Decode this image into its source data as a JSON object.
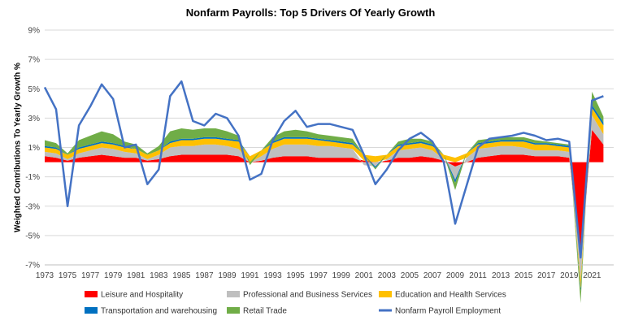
{
  "chart_data": {
    "type": "area",
    "title": "Nonfarm Payrolls: Top 5 Drivers Of Yearly Growth",
    "ylabel": "Weighted Contributions To Yearly Growth %",
    "xlabel": "",
    "x": [
      1973,
      1974,
      1975,
      1976,
      1977,
      1978,
      1979,
      1980,
      1981,
      1982,
      1983,
      1984,
      1985,
      1986,
      1987,
      1988,
      1989,
      1990,
      1991,
      1992,
      1993,
      1994,
      1995,
      1996,
      1997,
      1998,
      1999,
      2000,
      2001,
      2002,
      2003,
      2004,
      2005,
      2006,
      2007,
      2008,
      2009,
      2010,
      2011,
      2012,
      2013,
      2014,
      2015,
      2016,
      2017,
      2018,
      2019,
      2020,
      2021,
      2022
    ],
    "xlim": [
      1973,
      2022.9
    ],
    "ylim": [
      -7,
      9
    ],
    "x_ticks": [
      "1973",
      "1975",
      "1977",
      "1979",
      "1981",
      "1983",
      "1985",
      "1987",
      "1989",
      "1991",
      "1993",
      "1995",
      "1997",
      "1999",
      "2001",
      "2003",
      "2005",
      "2007",
      "2009",
      "2011",
      "2013",
      "2015",
      "2017",
      "2019",
      "2021"
    ],
    "y_ticks": [
      "9%",
      "7%",
      "5%",
      "3%",
      "1%",
      "-1%",
      "-3%",
      "-5%",
      "-7%"
    ],
    "series": [
      {
        "name": "Leisure and Hospitality",
        "kind": "area",
        "color": "#ff0000",
        "values": [
          0.4,
          0.3,
          0.1,
          0.3,
          0.4,
          0.5,
          0.4,
          0.3,
          0.3,
          0.1,
          0.2,
          0.4,
          0.5,
          0.5,
          0.5,
          0.5,
          0.5,
          0.4,
          0.0,
          0.1,
          0.3,
          0.4,
          0.4,
          0.4,
          0.3,
          0.3,
          0.3,
          0.3,
          0.1,
          0.0,
          0.1,
          0.3,
          0.3,
          0.4,
          0.3,
          0.1,
          -0.3,
          0.0,
          0.3,
          0.4,
          0.5,
          0.5,
          0.5,
          0.4,
          0.4,
          0.4,
          0.3,
          -6.5,
          2.2,
          1.2
        ]
      },
      {
        "name": "Professional and Business Services",
        "kind": "area",
        "color": "#bfbfbf",
        "values": [
          0.3,
          0.3,
          0.1,
          0.3,
          0.4,
          0.5,
          0.5,
          0.4,
          0.3,
          0.1,
          0.3,
          0.6,
          0.6,
          0.6,
          0.7,
          0.7,
          0.6,
          0.5,
          0.0,
          0.3,
          0.6,
          0.8,
          0.8,
          0.8,
          0.8,
          0.8,
          0.7,
          0.6,
          -0.2,
          -0.3,
          0.1,
          0.5,
          0.6,
          0.6,
          0.5,
          0.1,
          -0.9,
          0.3,
          0.6,
          0.6,
          0.6,
          0.6,
          0.5,
          0.4,
          0.4,
          0.4,
          0.4,
          -1.5,
          1.0,
          0.7
        ]
      },
      {
        "name": "Education and Health Services",
        "kind": "area",
        "color": "#ffc000",
        "values": [
          0.3,
          0.3,
          0.3,
          0.3,
          0.3,
          0.3,
          0.3,
          0.3,
          0.3,
          0.3,
          0.3,
          0.3,
          0.4,
          0.4,
          0.4,
          0.4,
          0.4,
          0.5,
          0.4,
          0.4,
          0.4,
          0.4,
          0.4,
          0.4,
          0.4,
          0.3,
          0.3,
          0.3,
          0.4,
          0.4,
          0.3,
          0.3,
          0.3,
          0.3,
          0.3,
          0.3,
          0.3,
          0.3,
          0.3,
          0.3,
          0.3,
          0.3,
          0.4,
          0.4,
          0.4,
          0.3,
          0.3,
          -0.6,
          0.5,
          0.6
        ]
      },
      {
        "name": "Transportation and warehousing",
        "kind": "area",
        "color": "#0070c0",
        "values": [
          0.1,
          0.1,
          0.0,
          0.1,
          0.1,
          0.1,
          0.1,
          0.1,
          0.0,
          0.0,
          0.0,
          0.1,
          0.1,
          0.1,
          0.1,
          0.1,
          0.1,
          0.1,
          0.0,
          0.0,
          0.1,
          0.1,
          0.1,
          0.1,
          0.1,
          0.1,
          0.1,
          0.1,
          0.0,
          -0.1,
          0.0,
          0.1,
          0.1,
          0.1,
          0.1,
          0.0,
          -0.2,
          0.0,
          0.1,
          0.1,
          0.1,
          0.1,
          0.1,
          0.1,
          0.1,
          0.1,
          0.1,
          -0.2,
          0.2,
          0.2
        ]
      },
      {
        "name": "Retail Trade",
        "kind": "area",
        "color": "#70ad47",
        "values": [
          0.4,
          0.3,
          0.1,
          0.5,
          0.6,
          0.7,
          0.6,
          0.3,
          0.3,
          0.1,
          0.3,
          0.7,
          0.7,
          0.6,
          0.6,
          0.6,
          0.5,
          0.3,
          -0.2,
          0.0,
          0.3,
          0.4,
          0.5,
          0.4,
          0.3,
          0.3,
          0.3,
          0.3,
          0.0,
          -0.1,
          0.0,
          0.2,
          0.3,
          0.2,
          0.2,
          0.0,
          -0.5,
          0.0,
          0.2,
          0.2,
          0.2,
          0.2,
          0.2,
          0.2,
          0.1,
          0.1,
          0.1,
          -0.8,
          0.9,
          0.4
        ]
      },
      {
        "name": "Nonfarm Payroll Employment",
        "kind": "line",
        "color": "#4472c4",
        "values": [
          5.1,
          3.6,
          -3.0,
          2.5,
          3.8,
          5.3,
          4.3,
          1.0,
          1.2,
          -1.5,
          -0.5,
          4.5,
          5.5,
          2.8,
          2.5,
          3.3,
          3.0,
          1.8,
          -1.2,
          -0.8,
          1.5,
          2.8,
          3.5,
          2.4,
          2.6,
          2.6,
          2.4,
          2.2,
          0.5,
          -1.5,
          -0.5,
          0.8,
          1.6,
          2.0,
          1.4,
          0.0,
          -4.2,
          -1.6,
          1.0,
          1.6,
          1.7,
          1.8,
          2.0,
          1.8,
          1.5,
          1.6,
          1.4,
          -6.5,
          4.2,
          4.5
        ]
      }
    ],
    "grid": true,
    "legend_position": "bottom"
  }
}
